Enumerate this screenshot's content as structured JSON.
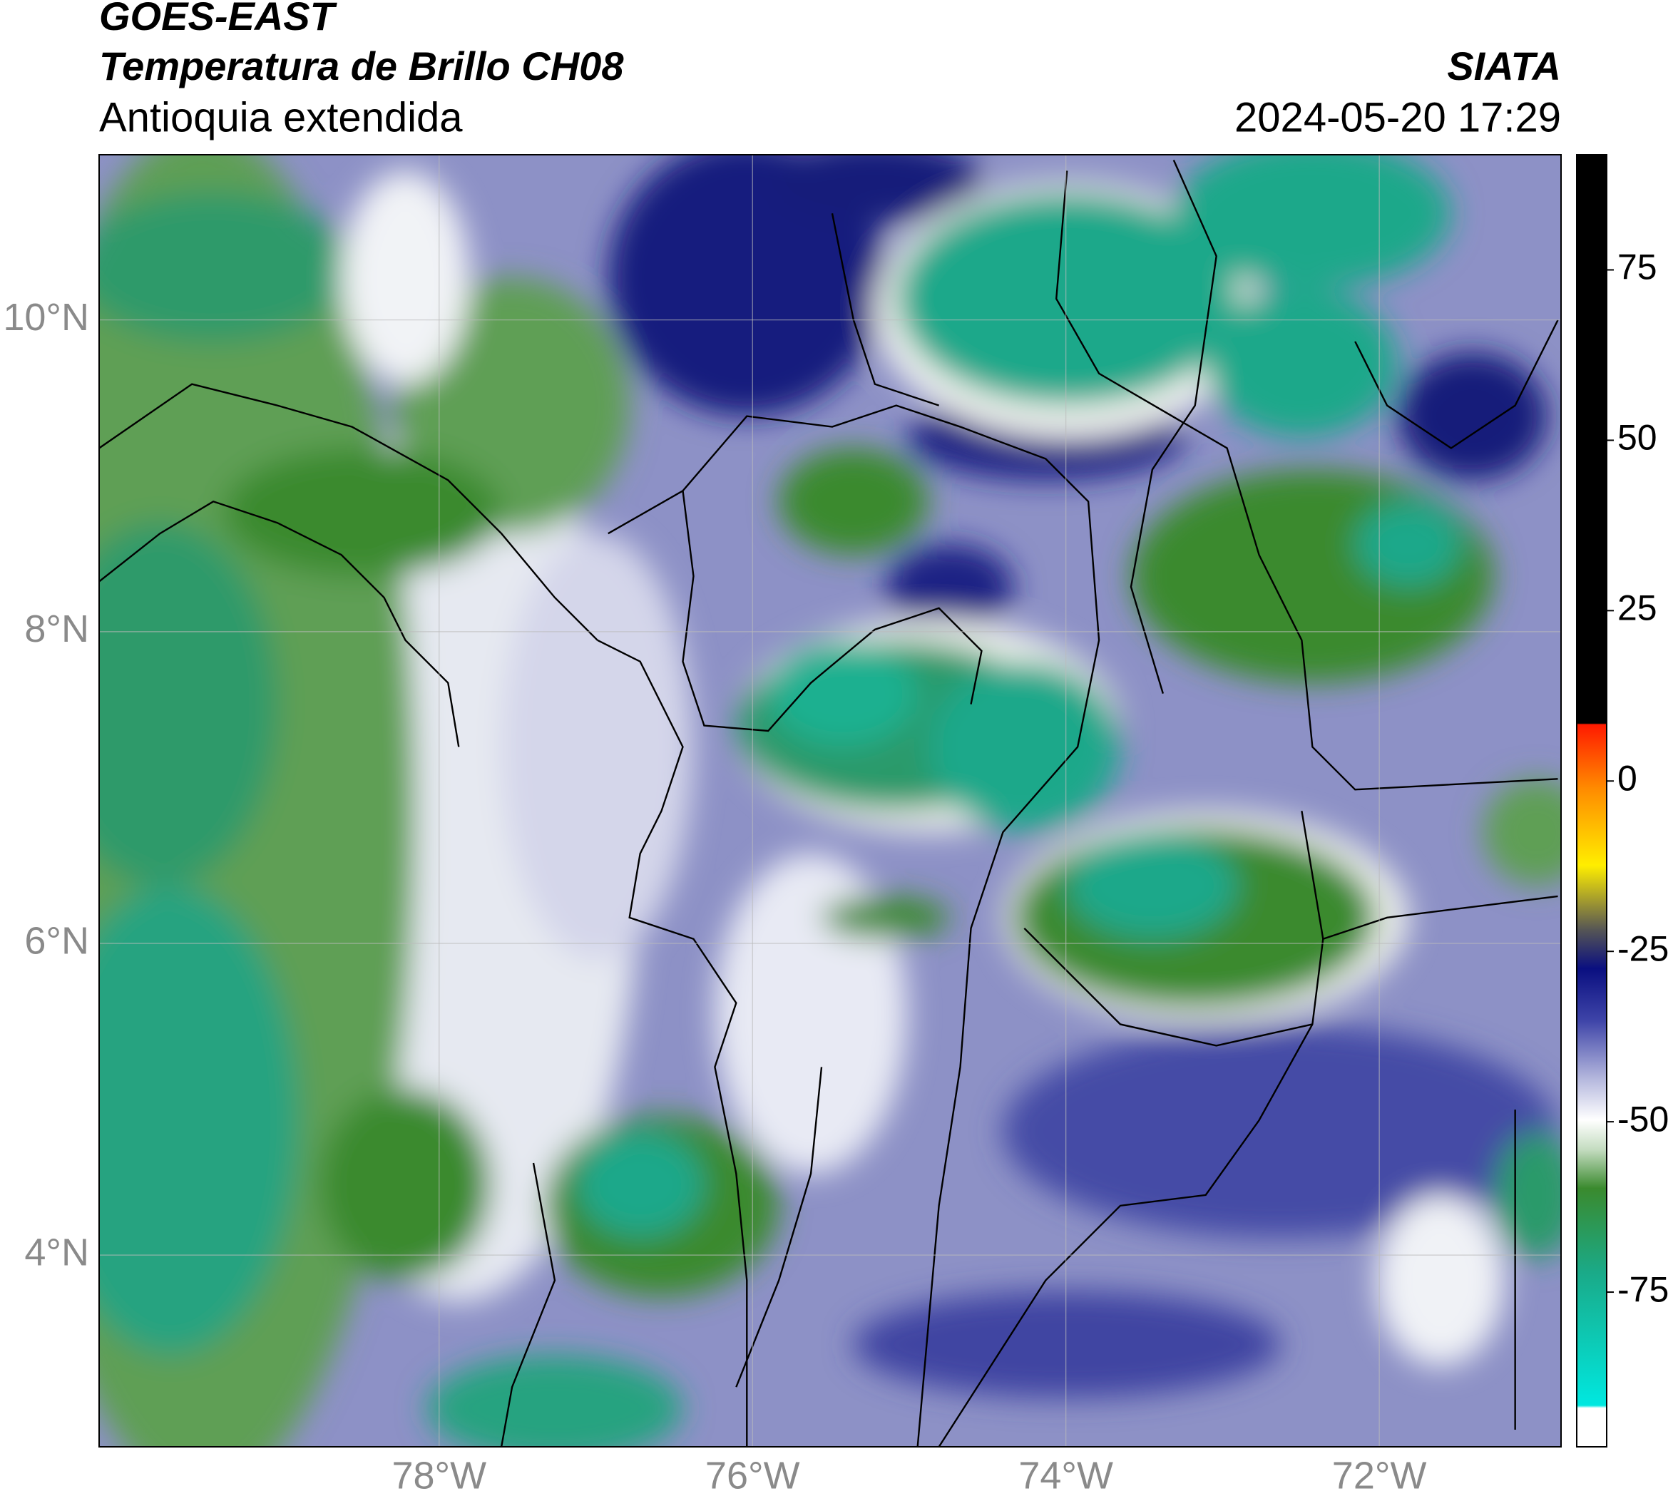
{
  "header": {
    "title": "GOES-EAST",
    "subtitle": "Temperatura de Brillo CH08",
    "region": "Antioquia extendida",
    "source": "SIATA",
    "timestamp": "2024-05-20 17:29"
  },
  "map": {
    "xlim": [
      -80.17,
      -70.84
    ],
    "ylim": [
      2.77,
      11.06
    ],
    "xticks": [
      {
        "value": -78,
        "label": "78°W"
      },
      {
        "value": -76,
        "label": "76°W"
      },
      {
        "value": -74,
        "label": "74°W"
      },
      {
        "value": -72,
        "label": "72°W"
      }
    ],
    "yticks": [
      {
        "value": 10,
        "label": "10°N"
      },
      {
        "value": 8,
        "label": "8°N"
      },
      {
        "value": 6,
        "label": "6°N"
      },
      {
        "value": 4,
        "label": "4°N"
      }
    ],
    "grid": true
  },
  "colorbar": {
    "lim": [
      -97.7,
      91.9
    ],
    "ticks": [
      75,
      50,
      25,
      0,
      -25,
      -50,
      -75
    ]
  }
}
